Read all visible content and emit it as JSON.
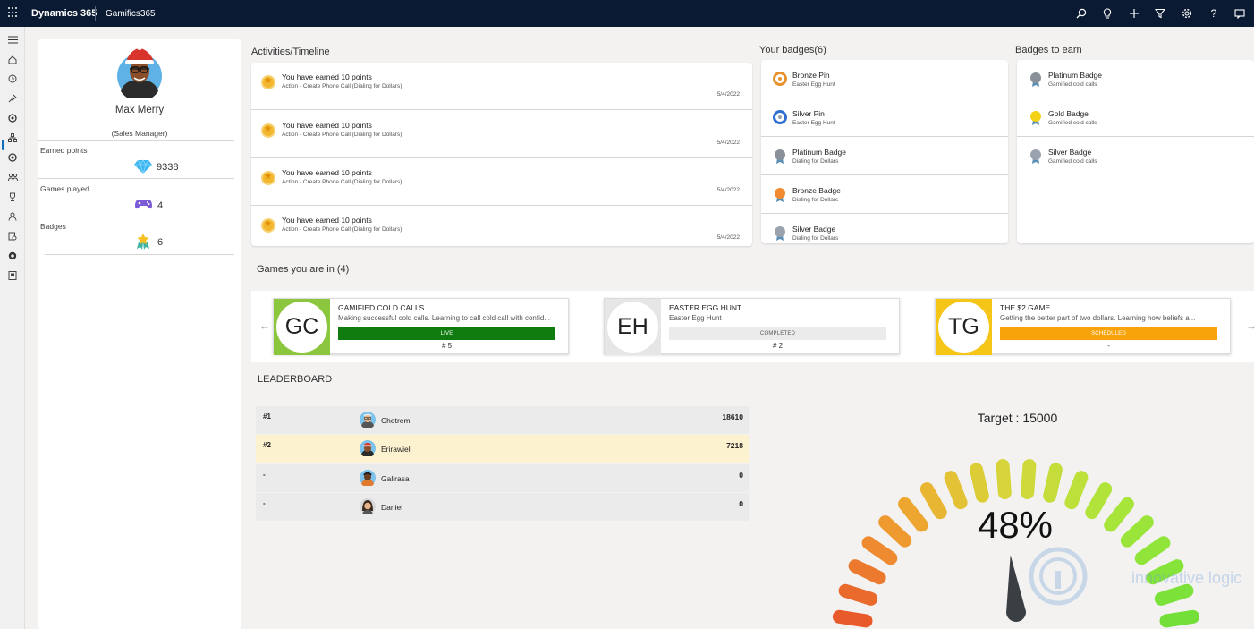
{
  "topbar": {
    "brand": "Dynamics 365",
    "app": "Gamifics365",
    "icons": [
      "search-icon",
      "lightbulb-icon",
      "plus-icon",
      "filter-icon",
      "gear-icon",
      "help-icon",
      "chat-icon"
    ]
  },
  "leftnav": {
    "icons": [
      "hamburger-icon",
      "home-icon",
      "recent-icon",
      "pin-icon",
      "gamification-icon",
      "org-icon",
      "target-icon",
      "team-icon",
      "trophy-icon",
      "person-icon",
      "report-icon",
      "globe-icon",
      "badge-icon"
    ]
  },
  "profile": {
    "name": "Max Merry",
    "role": "(Sales Manager)",
    "earned_label": "Earned points",
    "earned_value": "9338",
    "games_label": "Games played",
    "games_value": "4",
    "badges_label": "Badges",
    "badges_value": "6"
  },
  "activities": {
    "title": "Activities/Timeline",
    "items": [
      {
        "title": "You have earned 10 points",
        "sub": "Action - Create Phone Call (Dialing for Dollars)",
        "date": "5/4/2022"
      },
      {
        "title": "You have earned 10 points",
        "sub": "Action - Create Phone Call (Dialing for Dollars)",
        "date": "5/4/2022"
      },
      {
        "title": "You have earned 10 points",
        "sub": "Action - Create Phone Call (Dialing for Dollars)",
        "date": "5/4/2022"
      },
      {
        "title": "You have earned 10 points",
        "sub": "Action - Create Phone Call (Dialing for Dollars)",
        "date": "5/4/2022"
      }
    ]
  },
  "your_badges": {
    "title": "Your badges(6)",
    "items": [
      {
        "name": "Bronze Pin",
        "sub": "Easter Egg Hunt",
        "color": "#e8922e"
      },
      {
        "name": "Silver Pin",
        "sub": "Easter Egg Hunt",
        "color": "#2f6fd1"
      },
      {
        "name": "Platinum Badge",
        "sub": "Dialing for Dollars",
        "color": "#8a9099"
      },
      {
        "name": "Bronze Badge",
        "sub": "Dialing for Dollars",
        "color": "#f28b30"
      },
      {
        "name": "Silver Badge",
        "sub": "Dialing for Dollars",
        "color": "#9aa3ad"
      }
    ]
  },
  "badges_to_earn": {
    "title": "Badges to earn",
    "items": [
      {
        "name": "Platinum Badge",
        "sub": "Gamified cold calls",
        "color": "#8a9099"
      },
      {
        "name": "Gold Badge",
        "sub": "Gamified cold calls",
        "color": "#f5d21a"
      },
      {
        "name": "Silver Badge",
        "sub": "Gamified cold calls",
        "color": "#9aa3ad"
      }
    ]
  },
  "games": {
    "title": "Games you are in (4)",
    "left_arrow": "←",
    "right_arrow": "→",
    "items": [
      {
        "initials": "GC",
        "title": "GAMIFIED COLD CALLS",
        "desc": "Making successful cold calls. Learning to call cold call with confid...",
        "status": "LIVE",
        "rank": "# 5",
        "accent": "#8cc63f",
        "status_bg": "#107c10",
        "status_color": "#ffffff"
      },
      {
        "initials": "EH",
        "title": "EASTER EGG HUNT",
        "desc": "Easter Egg Hunt",
        "status": "COMPLETED",
        "rank": "# 2",
        "accent": "#e6e6e6",
        "status_bg": "#ebebeb",
        "status_color": "#555555"
      },
      {
        "initials": "TG",
        "title": "THE $2 GAME",
        "desc": "Getting the better part of two dollars. Learning how beliefs a...",
        "status": "SCHEDULED",
        "rank": "-",
        "accent": "#f5c518",
        "status_bg": "#f8a30a",
        "status_color": "#ffffff"
      }
    ]
  },
  "leaderboard": {
    "title": "LEADERBOARD",
    "rows": [
      {
        "rank": "#1",
        "name": "Chotrem",
        "score": "18610",
        "bg": "#ebebeb"
      },
      {
        "rank": "#2",
        "name": "Erirawiel",
        "score": "7218",
        "bg": "#fdf2cf"
      },
      {
        "rank": "-",
        "name": "Galirasa",
        "score": "0",
        "bg": "#ebebeb"
      },
      {
        "rank": "-",
        "name": "Daniel",
        "score": "0",
        "bg": "#ebebeb"
      }
    ]
  },
  "gauge": {
    "title": "Target : 15000",
    "percent_label": "48%",
    "percent": 0.48,
    "target": 15000
  },
  "watermark": {
    "text": "innovative logic"
  }
}
